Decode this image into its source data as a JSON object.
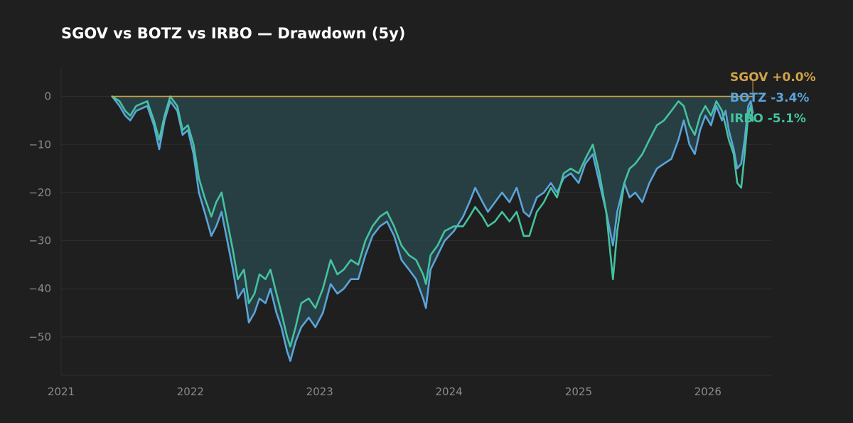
{
  "chart_data": {
    "type": "line",
    "title": "SGOV vs BOTZ vs IRBO — Drawdown (5y)",
    "xlabel": "",
    "ylabel": "",
    "x_range": [
      "2021-01-01",
      "2026-07-01"
    ],
    "ylim": [
      -58,
      6
    ],
    "x_ticks": [
      "2021",
      "2022",
      "2023",
      "2024",
      "2025",
      "2026"
    ],
    "y_ticks": [
      0,
      -10,
      -20,
      -30,
      -40,
      -50
    ],
    "y_tick_labels": [
      "0",
      "−10",
      "−20",
      "−30",
      "−40",
      "−50"
    ],
    "grid": true,
    "legend_position": "right, at last value",
    "series": [
      {
        "name": "SGOV",
        "color": "#d1a24a",
        "last_label": "+0.0%",
        "points": [
          [
            "2021-05-25",
            0
          ],
          [
            "2026-05-08",
            0
          ]
        ]
      },
      {
        "name": "BOTZ",
        "color": "#5ba4d9",
        "last_label": "-3.4%",
        "fill_color": "#2b4a50",
        "points": [
          [
            "2021-05-25",
            0
          ],
          [
            "2021-06-15",
            -2
          ],
          [
            "2021-07-01",
            -4
          ],
          [
            "2021-07-15",
            -5
          ],
          [
            "2021-08-01",
            -3
          ],
          [
            "2021-09-01",
            -2
          ],
          [
            "2021-09-20",
            -6
          ],
          [
            "2021-10-05",
            -11
          ],
          [
            "2021-10-20",
            -5
          ],
          [
            "2021-11-05",
            -1
          ],
          [
            "2021-11-25",
            -3
          ],
          [
            "2021-12-10",
            -8
          ],
          [
            "2021-12-25",
            -7
          ],
          [
            "2022-01-10",
            -12
          ],
          [
            "2022-01-25",
            -20
          ],
          [
            "2022-02-10",
            -24
          ],
          [
            "2022-03-01",
            -29
          ],
          [
            "2022-03-15",
            -27
          ],
          [
            "2022-03-30",
            -24
          ],
          [
            "2022-04-15",
            -30
          ],
          [
            "2022-05-01",
            -36
          ],
          [
            "2022-05-15",
            -42
          ],
          [
            "2022-06-01",
            -40
          ],
          [
            "2022-06-15",
            -47
          ],
          [
            "2022-07-01",
            -45
          ],
          [
            "2022-07-15",
            -42
          ],
          [
            "2022-08-01",
            -43
          ],
          [
            "2022-08-15",
            -40
          ],
          [
            "2022-09-01",
            -45
          ],
          [
            "2022-09-15",
            -48
          ],
          [
            "2022-10-01",
            -53
          ],
          [
            "2022-10-10",
            -55
          ],
          [
            "2022-10-25",
            -51
          ],
          [
            "2022-11-10",
            -48
          ],
          [
            "2022-12-01",
            -46
          ],
          [
            "2022-12-20",
            -48
          ],
          [
            "2023-01-10",
            -45
          ],
          [
            "2023-02-01",
            -39
          ],
          [
            "2023-02-20",
            -41
          ],
          [
            "2023-03-10",
            -40
          ],
          [
            "2023-03-30",
            -38
          ],
          [
            "2023-04-20",
            -38
          ],
          [
            "2023-05-10",
            -33
          ],
          [
            "2023-05-30",
            -29
          ],
          [
            "2023-06-20",
            -27
          ],
          [
            "2023-07-10",
            -26
          ],
          [
            "2023-07-30",
            -29
          ],
          [
            "2023-08-20",
            -34
          ],
          [
            "2023-09-10",
            -36
          ],
          [
            "2023-09-30",
            -38
          ],
          [
            "2023-10-20",
            -42
          ],
          [
            "2023-10-28",
            -44
          ],
          [
            "2023-11-10",
            -36
          ],
          [
            "2023-11-30",
            -33
          ],
          [
            "2023-12-20",
            -30
          ],
          [
            "2024-01-15",
            -28
          ],
          [
            "2024-02-10",
            -25
          ],
          [
            "2024-02-28",
            -22
          ],
          [
            "2024-03-15",
            -19
          ],
          [
            "2024-04-05",
            -22
          ],
          [
            "2024-04-20",
            -24
          ],
          [
            "2024-05-10",
            -22
          ],
          [
            "2024-05-30",
            -20
          ],
          [
            "2024-06-20",
            -22
          ],
          [
            "2024-07-10",
            -19
          ],
          [
            "2024-07-30",
            -24
          ],
          [
            "2024-08-15",
            -25
          ],
          [
            "2024-09-05",
            -21
          ],
          [
            "2024-09-25",
            -20
          ],
          [
            "2024-10-15",
            -18
          ],
          [
            "2024-11-01",
            -20
          ],
          [
            "2024-11-20",
            -17
          ],
          [
            "2024-12-10",
            -16
          ],
          [
            "2025-01-01",
            -18
          ],
          [
            "2025-01-20",
            -14
          ],
          [
            "2025-02-10",
            -12
          ],
          [
            "2025-03-01",
            -18
          ],
          [
            "2025-03-20",
            -24
          ],
          [
            "2025-04-08",
            -31
          ],
          [
            "2025-04-20",
            -24
          ],
          [
            "2025-05-10",
            -18
          ],
          [
            "2025-05-25",
            -21
          ],
          [
            "2025-06-10",
            -20
          ],
          [
            "2025-06-30",
            -22
          ],
          [
            "2025-07-20",
            -18
          ],
          [
            "2025-08-10",
            -15
          ],
          [
            "2025-08-30",
            -14
          ],
          [
            "2025-09-20",
            -13
          ],
          [
            "2025-10-10",
            -9
          ],
          [
            "2025-10-25",
            -5
          ],
          [
            "2025-11-10",
            -10
          ],
          [
            "2025-11-25",
            -12
          ],
          [
            "2025-12-10",
            -7
          ],
          [
            "2025-12-25",
            -4
          ],
          [
            "2026-01-10",
            -6
          ],
          [
            "2026-01-25",
            -2
          ],
          [
            "2026-02-10",
            -5
          ],
          [
            "2026-02-20",
            -3
          ],
          [
            "2026-03-01",
            -7
          ],
          [
            "2026-03-15",
            -11
          ],
          [
            "2026-03-25",
            -15
          ],
          [
            "2026-04-05",
            -14
          ],
          [
            "2026-04-15",
            -9
          ],
          [
            "2026-04-25",
            -2
          ],
          [
            "2026-05-02",
            -1
          ],
          [
            "2026-05-08",
            -3.4
          ]
        ]
      },
      {
        "name": "IRBO",
        "color": "#45c2a0",
        "last_label": "-5.1%",
        "points": [
          [
            "2021-05-25",
            0
          ],
          [
            "2021-06-15",
            -1
          ],
          [
            "2021-07-01",
            -3
          ],
          [
            "2021-07-15",
            -4
          ],
          [
            "2021-08-01",
            -2
          ],
          [
            "2021-09-01",
            -1
          ],
          [
            "2021-09-20",
            -5
          ],
          [
            "2021-10-05",
            -9
          ],
          [
            "2021-10-20",
            -4
          ],
          [
            "2021-11-05",
            0
          ],
          [
            "2021-11-25",
            -2
          ],
          [
            "2021-12-10",
            -7
          ],
          [
            "2021-12-25",
            -6
          ],
          [
            "2022-01-10",
            -10
          ],
          [
            "2022-01-25",
            -17
          ],
          [
            "2022-02-10",
            -21
          ],
          [
            "2022-03-01",
            -25
          ],
          [
            "2022-03-15",
            -22
          ],
          [
            "2022-03-30",
            -20
          ],
          [
            "2022-04-15",
            -26
          ],
          [
            "2022-05-01",
            -32
          ],
          [
            "2022-05-15",
            -38
          ],
          [
            "2022-06-01",
            -36
          ],
          [
            "2022-06-15",
            -43
          ],
          [
            "2022-07-01",
            -41
          ],
          [
            "2022-07-15",
            -37
          ],
          [
            "2022-08-01",
            -38
          ],
          [
            "2022-08-15",
            -36
          ],
          [
            "2022-09-01",
            -41
          ],
          [
            "2022-09-15",
            -45
          ],
          [
            "2022-10-01",
            -50
          ],
          [
            "2022-10-10",
            -52
          ],
          [
            "2022-10-25",
            -48
          ],
          [
            "2022-11-10",
            -43
          ],
          [
            "2022-12-01",
            -42
          ],
          [
            "2022-12-20",
            -44
          ],
          [
            "2023-01-10",
            -40
          ],
          [
            "2023-02-01",
            -34
          ],
          [
            "2023-02-20",
            -37
          ],
          [
            "2023-03-10",
            -36
          ],
          [
            "2023-03-30",
            -34
          ],
          [
            "2023-04-20",
            -35
          ],
          [
            "2023-05-10",
            -30
          ],
          [
            "2023-05-30",
            -27
          ],
          [
            "2023-06-20",
            -25
          ],
          [
            "2023-07-10",
            -24
          ],
          [
            "2023-07-30",
            -27
          ],
          [
            "2023-08-20",
            -31
          ],
          [
            "2023-09-10",
            -33
          ],
          [
            "2023-09-30",
            -34
          ],
          [
            "2023-10-20",
            -37
          ],
          [
            "2023-10-28",
            -39
          ],
          [
            "2023-11-10",
            -33
          ],
          [
            "2023-11-30",
            -31
          ],
          [
            "2023-12-20",
            -28
          ],
          [
            "2024-01-15",
            -27
          ],
          [
            "2024-02-10",
            -27
          ],
          [
            "2024-02-28",
            -25
          ],
          [
            "2024-03-15",
            -23
          ],
          [
            "2024-04-05",
            -25
          ],
          [
            "2024-04-20",
            -27
          ],
          [
            "2024-05-10",
            -26
          ],
          [
            "2024-05-30",
            -24
          ],
          [
            "2024-06-20",
            -26
          ],
          [
            "2024-07-10",
            -24
          ],
          [
            "2024-07-30",
            -29
          ],
          [
            "2024-08-15",
            -29
          ],
          [
            "2024-09-05",
            -24
          ],
          [
            "2024-09-25",
            -22
          ],
          [
            "2024-10-15",
            -19
          ],
          [
            "2024-11-01",
            -21
          ],
          [
            "2024-11-20",
            -16
          ],
          [
            "2024-12-10",
            -15
          ],
          [
            "2025-01-01",
            -16
          ],
          [
            "2025-01-20",
            -13
          ],
          [
            "2025-02-10",
            -10
          ],
          [
            "2025-03-01",
            -16
          ],
          [
            "2025-03-20",
            -24
          ],
          [
            "2025-04-08",
            -38
          ],
          [
            "2025-04-20",
            -28
          ],
          [
            "2025-05-10",
            -18
          ],
          [
            "2025-05-25",
            -15
          ],
          [
            "2025-06-10",
            -14
          ],
          [
            "2025-06-30",
            -12
          ],
          [
            "2025-07-20",
            -9
          ],
          [
            "2025-08-10",
            -6
          ],
          [
            "2025-08-30",
            -5
          ],
          [
            "2025-09-20",
            -3
          ],
          [
            "2025-10-10",
            -1
          ],
          [
            "2025-10-25",
            -2
          ],
          [
            "2025-11-10",
            -6
          ],
          [
            "2025-11-25",
            -8
          ],
          [
            "2025-12-10",
            -4
          ],
          [
            "2025-12-25",
            -2
          ],
          [
            "2026-01-10",
            -4
          ],
          [
            "2026-01-25",
            -1
          ],
          [
            "2026-02-10",
            -3
          ],
          [
            "2026-02-20",
            -6
          ],
          [
            "2026-03-01",
            -9
          ],
          [
            "2026-03-15",
            -12
          ],
          [
            "2026-03-25",
            -18
          ],
          [
            "2026-04-05",
            -19
          ],
          [
            "2026-04-15",
            -12
          ],
          [
            "2026-04-25",
            -4
          ],
          [
            "2026-05-02",
            -2
          ],
          [
            "2026-05-08",
            -5.1
          ]
        ]
      }
    ]
  }
}
